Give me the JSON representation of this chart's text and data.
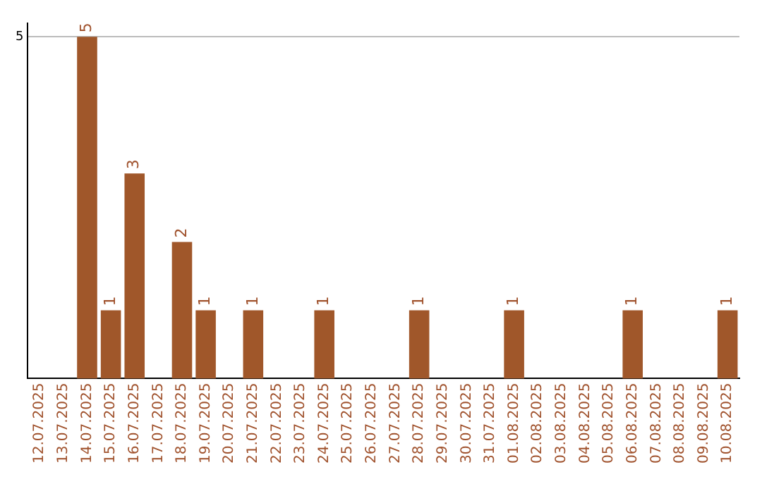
{
  "chart_data": {
    "type": "bar",
    "categories": [
      "12.07.2025",
      "13.07.2025",
      "14.07.2025",
      "15.07.2025",
      "16.07.2025",
      "17.07.2025",
      "18.07.2025",
      "19.07.2025",
      "20.07.2025",
      "21.07.2025",
      "22.07.2025",
      "23.07.2025",
      "24.07.2025",
      "25.07.2025",
      "26.07.2025",
      "27.07.2025",
      "28.07.2025",
      "29.07.2025",
      "30.07.2025",
      "31.07.2025",
      "01.08.2025",
      "02.08.2025",
      "03.08.2025",
      "04.08.2025",
      "05.08.2025",
      "06.08.2025",
      "07.08.2025",
      "08.08.2025",
      "09.08.2025",
      "10.08.2025"
    ],
    "values": [
      0,
      0,
      5,
      1,
      3,
      0,
      2,
      1,
      0,
      1,
      0,
      0,
      1,
      0,
      0,
      0,
      1,
      0,
      0,
      0,
      1,
      0,
      0,
      0,
      0,
      1,
      0,
      0,
      0,
      1
    ],
    "value_labels": [
      null,
      null,
      "5",
      "1",
      "3",
      null,
      "2",
      "1",
      null,
      "1",
      null,
      null,
      "1",
      null,
      null,
      null,
      "1",
      null,
      null,
      null,
      "1",
      null,
      null,
      null,
      null,
      "1",
      null,
      null,
      null,
      "1"
    ],
    "color": "#a0572a",
    "ylim": [
      0,
      5.2
    ],
    "yticks": [
      5
    ],
    "grid": "y",
    "legend": false
  }
}
